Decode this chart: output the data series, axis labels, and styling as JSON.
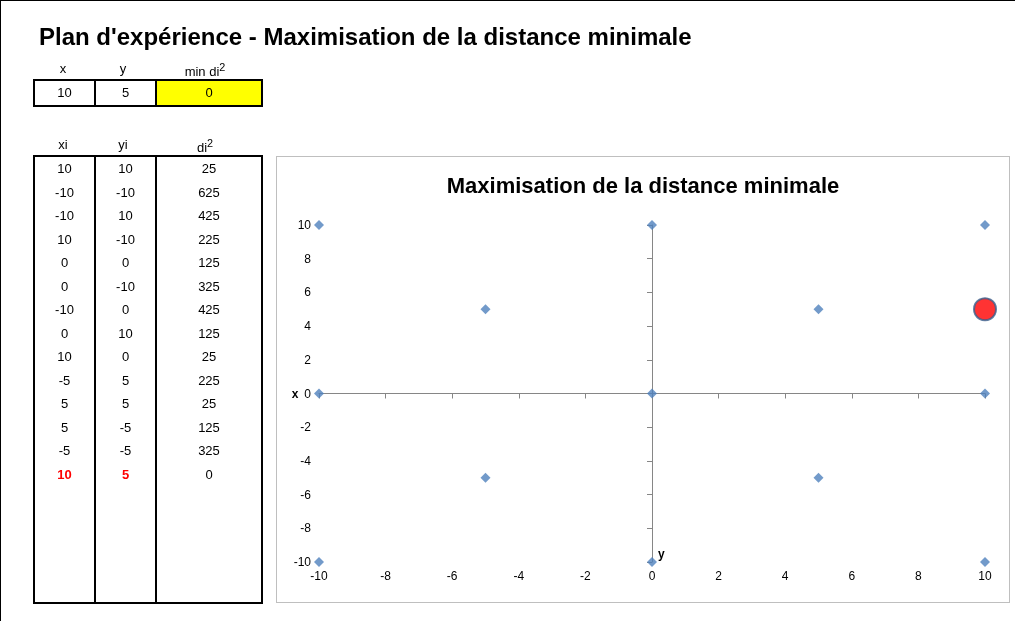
{
  "chart_data": [
    {
      "type": "other",
      "title": "Plan d'expérience - Maximisation de la distance minimale",
      "categories": [
        "x",
        "y",
        "min di$^{2}$"
      ],
      "annotations": [
        "10",
        "5",
        "0"
      ]
    },
    {
      "type": "other",
      "categories": [
        "xi",
        "yi",
        "di$^{2}$"
      ],
      "annotations": [
        "10",
        "10",
        "25",
        "-10",
        "-10",
        "625",
        "-10",
        "10",
        "425",
        "10",
        "-10",
        "225",
        "0",
        "0",
        "125",
        "0",
        "-10",
        "325",
        "-10",
        "0",
        "425",
        "0",
        "10",
        "125",
        "10",
        "0",
        "25",
        "-5",
        "5",
        "225",
        "5",
        "5",
        "25",
        "5",
        "-5",
        "125",
        "-5",
        "-5",
        "325",
        "10",
        "5",
        "0"
      ]
    },
    {
      "type": "scatter",
      "title": "Maximisation de la distance minimale",
      "xlabel": "x",
      "ylabel": "y",
      "series": [
        {
          "color": "#4f81bd",
          "marker": "diamond",
          "x": [
            10,
            -10,
            -10,
            10,
            0,
            0,
            -10,
            0,
            10,
            -5,
            5,
            5,
            -5
          ],
          "values": [
            10,
            -10,
            10,
            -10,
            0,
            -10,
            0,
            10,
            0,
            5,
            5,
            -5,
            -5
          ]
        },
        {
          "color": "#ff0000",
          "marker": "circle",
          "x": [
            10
          ],
          "values": [
            5
          ]
        }
      ],
      "xlim": [
        -10,
        10
      ],
      "xticks": [
        -10,
        -8,
        -6,
        -4,
        -2,
        0,
        2,
        4,
        6,
        8,
        10
      ],
      "ylim": [
        -10,
        10
      ],
      "yticks": [
        -10,
        -8,
        -6,
        -4,
        -2,
        0,
        2,
        4,
        6,
        8,
        10
      ]
    }
  ]
}
